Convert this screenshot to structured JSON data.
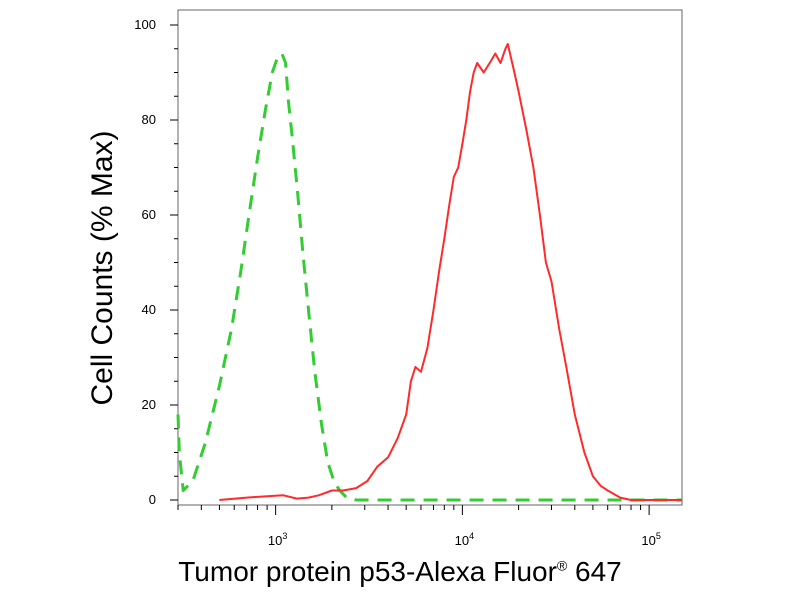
{
  "chart_data": {
    "type": "line",
    "title": "",
    "xlabel": "Tumor protein p53-Alexa Fluor",
    "xlabel_mark": "®",
    "xlabel_suffix": " 647",
    "ylabel": "Cell Counts (% Max)",
    "x_scale": "log",
    "xlim": [
      300,
      150000
    ],
    "ylim": [
      0,
      100
    ],
    "x_ticks": [
      {
        "value": 1000,
        "base": "10",
        "exp": "3"
      },
      {
        "value": 10000,
        "base": "10",
        "exp": "4"
      },
      {
        "value": 100000,
        "base": "10",
        "exp": "5"
      }
    ],
    "y_ticks": [
      {
        "value": 0,
        "label": "0"
      },
      {
        "value": 20,
        "label": "20"
      },
      {
        "value": 40,
        "label": "40"
      },
      {
        "value": 60,
        "label": "60"
      },
      {
        "value": 80,
        "label": "80"
      },
      {
        "value": 100,
        "label": "100"
      }
    ],
    "grid": false,
    "series": [
      {
        "style": "dashed",
        "color": "#33cc33",
        "x": [
          300,
          305,
          320,
          360,
          420,
          500,
          580,
          650,
          720,
          800,
          880,
          960,
          1020,
          1080,
          1130,
          1170,
          1230,
          1310,
          1400,
          1500,
          1620,
          1760,
          1900,
          2050,
          2200,
          2400,
          2700,
          3500,
          5000,
          8000,
          15000,
          30000,
          60000,
          100000,
          150000
        ],
        "y": [
          18,
          10,
          2,
          4,
          12,
          24,
          36,
          48,
          60,
          72,
          82,
          90,
          93,
          94,
          92,
          84,
          76,
          65,
          52,
          40,
          27,
          16,
          8,
          4,
          2,
          0.5,
          0,
          0,
          0,
          0,
          0,
          0,
          0,
          0,
          0
        ]
      },
      {
        "style": "solid",
        "color": "#ff2a2a",
        "x": [
          500,
          700,
          900,
          1100,
          1300,
          1500,
          1700,
          2000,
          2300,
          2700,
          3100,
          3500,
          4000,
          4500,
          5000,
          5300,
          5600,
          6000,
          6500,
          7000,
          7500,
          8000,
          8500,
          9000,
          9500,
          10000,
          10500,
          11000,
          11500,
          12000,
          13000,
          14000,
          15000,
          16000,
          17000,
          17500,
          18000,
          19000,
          20000,
          22000,
          24000,
          26000,
          28000,
          30000,
          33000,
          36000,
          40000,
          45000,
          50000,
          55000,
          60000,
          70000,
          80000,
          90000,
          100000,
          120000,
          150000
        ],
        "y": [
          0,
          0.5,
          0.8,
          1,
          0.3,
          0.5,
          1,
          2,
          2,
          2.5,
          4,
          7,
          9,
          13,
          18,
          25,
          28,
          27,
          32,
          40,
          48,
          55,
          62,
          68,
          70,
          75,
          80,
          86,
          90,
          92,
          90,
          92,
          94,
          92,
          95,
          96,
          94,
          90,
          86,
          78,
          70,
          60,
          50,
          46,
          36,
          28,
          18,
          10,
          5,
          3,
          2,
          0.5,
          0,
          0,
          0,
          0,
          0
        ]
      }
    ]
  }
}
